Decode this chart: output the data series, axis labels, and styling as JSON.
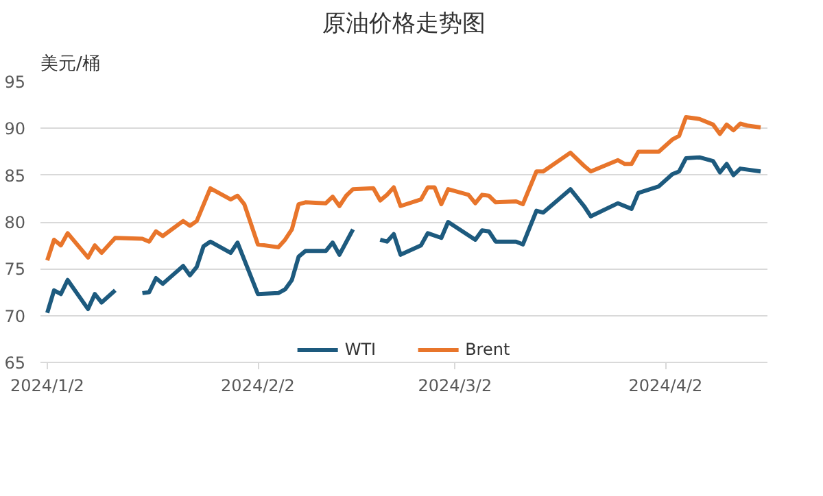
{
  "chart_data": {
    "type": "line",
    "title": "原油价格走势图",
    "ylabel": "美元/桶",
    "xlim": [
      "2024-01-01",
      "2024-04-17"
    ],
    "xticks": [
      {
        "value": "2024-01-02",
        "label": "2024/1/2"
      },
      {
        "value": "2024-02-02",
        "label": "2024/2/2"
      },
      {
        "value": "2024-03-02",
        "label": "2024/3/2"
      },
      {
        "value": "2024-04-02",
        "label": "2024/4/2"
      }
    ],
    "ylim": [
      65,
      95
    ],
    "yticks": [
      65,
      70,
      75,
      80,
      85,
      90,
      95
    ],
    "grid": "y",
    "legend": "bottom",
    "marker": "none",
    "line_style": "solid",
    "series": [
      {
        "name": "WTI",
        "color": "#1d5a7e",
        "x": [
          "2024-01-02",
          "2024-01-03",
          "2024-01-04",
          "2024-01-05",
          "2024-01-08",
          "2024-01-09",
          "2024-01-10",
          "2024-01-12",
          "2024-01-15",
          "2024-01-16",
          "2024-01-17",
          "2024-01-18",
          "2024-01-19",
          "2024-01-22",
          "2024-01-23",
          "2024-01-24",
          "2024-01-25",
          "2024-01-26",
          "2024-01-29",
          "2024-01-30",
          "2024-02-02",
          "2024-02-05",
          "2024-02-06",
          "2024-02-07",
          "2024-02-08",
          "2024-02-09",
          "2024-02-12",
          "2024-02-13",
          "2024-02-14",
          "2024-02-16",
          "2024-02-19",
          "2024-02-20",
          "2024-02-21",
          "2024-02-22",
          "2024-02-23",
          "2024-02-26",
          "2024-02-27",
          "2024-02-29",
          "2024-03-01",
          "2024-03-05",
          "2024-03-06",
          "2024-03-07",
          "2024-03-08",
          "2024-03-11",
          "2024-03-12",
          "2024-03-14",
          "2024-03-15",
          "2024-03-19",
          "2024-03-21",
          "2024-03-22",
          "2024-03-26",
          "2024-03-28",
          "2024-03-29",
          "2024-04-01",
          "2024-04-03",
          "2024-04-04",
          "2024-04-05",
          "2024-04-07",
          "2024-04-09",
          "2024-04-10",
          "2024-04-11",
          "2024-04-12",
          "2024-04-13",
          "2024-04-16"
        ],
        "values": [
          70.3,
          72.7,
          72.3,
          73.8,
          70.7,
          72.3,
          71.4,
          72.7,
          null,
          72.4,
          72.5,
          74.0,
          73.4,
          75.3,
          74.3,
          75.2,
          77.4,
          77.9,
          76.7,
          77.8,
          72.3,
          72.4,
          72.8,
          73.8,
          76.3,
          76.9,
          76.9,
          77.8,
          76.5,
          79.2,
          null,
          78.1,
          77.9,
          78.7,
          76.5,
          77.5,
          78.8,
          78.3,
          80.0,
          78.1,
          79.1,
          79.0,
          77.9,
          77.9,
          77.6,
          81.2,
          81.0,
          83.5,
          81.7,
          80.6,
          82.0,
          81.4,
          83.1,
          83.8,
          85.1,
          85.4,
          86.8,
          86.9,
          86.5,
          85.3,
          86.2,
          85.0,
          85.7,
          85.4
        ]
      },
      {
        "name": "Brent",
        "color": "#e8752b",
        "x": [
          "2024-01-02",
          "2024-01-03",
          "2024-01-04",
          "2024-01-05",
          "2024-01-08",
          "2024-01-09",
          "2024-01-10",
          "2024-01-12",
          "2024-01-16",
          "2024-01-17",
          "2024-01-18",
          "2024-01-19",
          "2024-01-22",
          "2024-01-23",
          "2024-01-24",
          "2024-01-26",
          "2024-01-29",
          "2024-01-30",
          "2024-01-31",
          "2024-02-02",
          "2024-02-05",
          "2024-02-06",
          "2024-02-07",
          "2024-02-08",
          "2024-02-09",
          "2024-02-12",
          "2024-02-13",
          "2024-02-14",
          "2024-02-15",
          "2024-02-16",
          "2024-02-19",
          "2024-02-20",
          "2024-02-21",
          "2024-02-22",
          "2024-02-23",
          "2024-02-26",
          "2024-02-27",
          "2024-02-28",
          "2024-02-29",
          "2024-03-01",
          "2024-03-04",
          "2024-03-05",
          "2024-03-06",
          "2024-03-07",
          "2024-03-08",
          "2024-03-11",
          "2024-03-12",
          "2024-03-14",
          "2024-03-15",
          "2024-03-19",
          "2024-03-21",
          "2024-03-22",
          "2024-03-26",
          "2024-03-27",
          "2024-03-28",
          "2024-03-29",
          "2024-04-01",
          "2024-04-03",
          "2024-04-04",
          "2024-04-05",
          "2024-04-07",
          "2024-04-09",
          "2024-04-10",
          "2024-04-11",
          "2024-04-12",
          "2024-04-13",
          "2024-04-14",
          "2024-04-16"
        ],
        "values": [
          75.9,
          78.1,
          77.5,
          78.8,
          76.2,
          77.5,
          76.7,
          78.3,
          78.2,
          77.9,
          79.0,
          78.5,
          80.1,
          79.6,
          80.1,
          83.6,
          82.4,
          82.8,
          81.9,
          77.6,
          77.3,
          78.1,
          79.2,
          81.9,
          82.1,
          82.0,
          82.7,
          81.7,
          82.8,
          83.5,
          83.6,
          82.3,
          82.9,
          83.7,
          81.7,
          82.4,
          83.7,
          83.7,
          81.9,
          83.5,
          82.9,
          82.0,
          82.9,
          82.8,
          82.1,
          82.2,
          81.9,
          85.4,
          85.4,
          87.4,
          86.0,
          85.4,
          86.6,
          86.2,
          86.2,
          87.5,
          87.5,
          88.8,
          89.2,
          91.2,
          91.0,
          90.4,
          89.4,
          90.4,
          89.8,
          90.5,
          90.3,
          90.1
        ]
      }
    ]
  }
}
